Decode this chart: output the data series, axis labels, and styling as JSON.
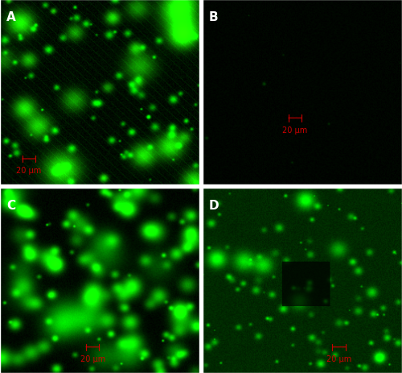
{
  "figsize": [
    5.0,
    4.64
  ],
  "dpi": 100,
  "panel_labels": [
    "A",
    "B",
    "C",
    "D"
  ],
  "label_color": "white",
  "label_fontsize": 11,
  "scalebar_color": "#cc0000",
  "scalebar_text": "20 μm",
  "scalebar_fontsize": 7,
  "border_color": "white",
  "border_lw": 1.0,
  "panel_A": {
    "bg_color": [
      0,
      35,
      0
    ],
    "brightness": 0.55,
    "seed": 42
  },
  "panel_B": {
    "bg_color": [
      0,
      10,
      0
    ],
    "brightness": 0.05,
    "seed": 99
  },
  "panel_C": {
    "bg_color": [
      0,
      25,
      0
    ],
    "brightness": 0.45,
    "seed": 7
  },
  "panel_D": {
    "bg_color": [
      0,
      30,
      0
    ],
    "brightness": 0.4,
    "seed": 13
  }
}
